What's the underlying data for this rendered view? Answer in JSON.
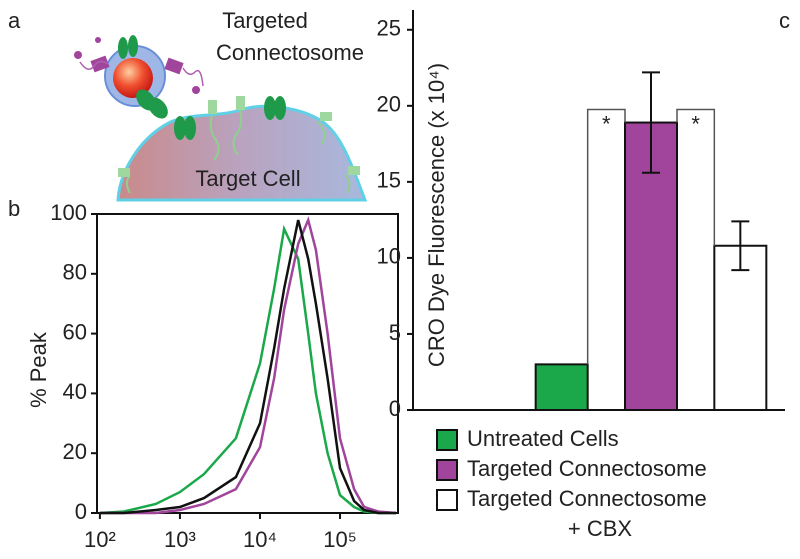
{
  "illustration": {
    "label": "a",
    "title_lines": [
      "Targeted",
      "Connectosome"
    ],
    "cell_label": "Target Cell"
  },
  "chart_data": [
    {
      "type": "line",
      "label": "b",
      "ylabel": "% Peak",
      "xscale": "log",
      "x": [
        100,
        200,
        500,
        1000,
        2000,
        5000,
        10000,
        15000,
        20000,
        30000,
        40000,
        50000,
        70000,
        100000,
        150000,
        200000,
        300000,
        500000
      ],
      "series": [
        {
          "color": "#1aa84a",
          "values": [
            0,
            0.5,
            3,
            7,
            13,
            25,
            50,
            75,
            95,
            85,
            60,
            40,
            20,
            6,
            2,
            0.5,
            0,
            0
          ]
        },
        {
          "color": "#a0459b",
          "values": [
            0,
            0,
            0,
            1,
            3,
            8,
            22,
            45,
            68,
            90,
            98,
            88,
            60,
            25,
            8,
            2,
            0.5,
            0
          ]
        },
        {
          "color": "#111111",
          "values": [
            0,
            0,
            1,
            2,
            5,
            12,
            30,
            55,
            75,
            98,
            85,
            70,
            45,
            15,
            4,
            1,
            0,
            0
          ]
        }
      ],
      "xlim": [
        92,
        530000
      ],
      "xticks": [
        {
          "value": 100,
          "label": "10²"
        },
        {
          "value": 1000,
          "label": "10³"
        },
        {
          "value": 10000,
          "label": "10⁴"
        },
        {
          "value": 100000,
          "label": "10⁵"
        }
      ],
      "ylim": [
        0,
        100
      ],
      "yticks": [
        0,
        20,
        40,
        60,
        80,
        100
      ]
    },
    {
      "type": "bar",
      "label": "c",
      "ylabel": "CRO Dye Fluorescence  (x 10⁴)",
      "categories": [
        [
          "Untreated Cells"
        ],
        [
          "Targeted Connectosome"
        ],
        [
          "Targeted Connectosome",
          "+ CBX"
        ]
      ],
      "values": [
        3.0,
        18.9,
        10.8
      ],
      "errors": [
        null,
        3.3,
        1.6
      ],
      "colors": [
        "#1aa84a",
        "#a0459b",
        "#ffffff"
      ],
      "annotations": [
        "*",
        "*"
      ],
      "ylim": [
        0,
        26.3
      ],
      "yticks": [
        0,
        5,
        10,
        15,
        20,
        25
      ]
    }
  ]
}
